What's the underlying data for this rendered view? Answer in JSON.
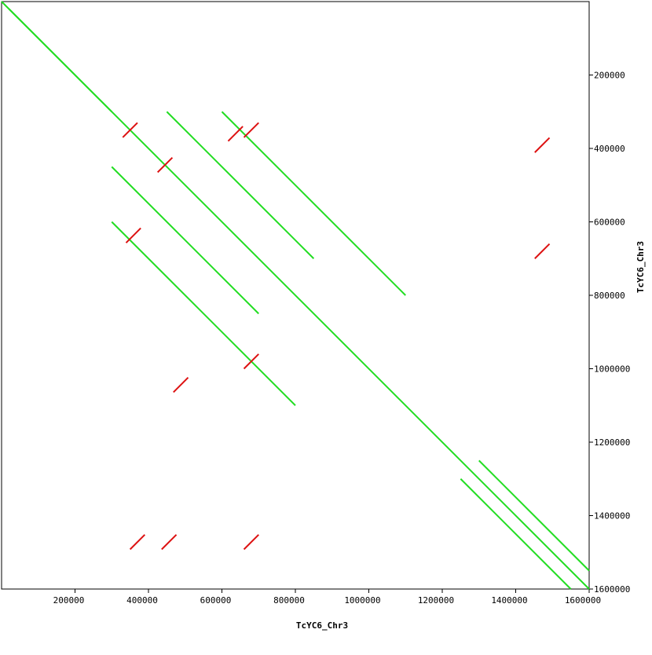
{
  "chart_data": {
    "type": "dotplot",
    "x_label": "TcYC6_Chr3",
    "y_label": "TcYC6_Chr3",
    "xlim": [
      0,
      1600000
    ],
    "ylim": [
      0,
      1600000
    ],
    "xticks": [
      200000,
      400000,
      600000,
      800000,
      1000000,
      1200000,
      1400000,
      1600000
    ],
    "yticks": [
      200000,
      400000,
      600000,
      800000,
      1000000,
      1200000,
      1400000,
      1600000
    ],
    "forward": {
      "color": "#22dd22",
      "segments": [
        [
          0,
          0,
          1600000,
          1600000
        ],
        [
          300000,
          450000,
          700000,
          850000
        ],
        [
          450000,
          300000,
          850000,
          700000
        ],
        [
          600000,
          300000,
          1100000,
          800000
        ],
        [
          300000,
          600000,
          800000,
          1100000
        ],
        [
          1250000,
          1300000,
          1550000,
          1600000
        ],
        [
          1300000,
          1250000,
          1600000,
          1550000
        ],
        [
          20000,
          20000,
          300000,
          300000
        ]
      ]
    },
    "reverse": {
      "color": "#dd1111",
      "segments": [
        [
          330000,
          370000,
          370000,
          330000
        ],
        [
          425000,
          465000,
          465000,
          425000
        ],
        [
          617000,
          380000,
          657000,
          340000
        ],
        [
          339000,
          657000,
          379000,
          617000
        ],
        [
          660000,
          370000,
          700000,
          330000
        ],
        [
          468000,
          1064000,
          508000,
          1024000
        ],
        [
          660000,
          1000000,
          700000,
          960000
        ],
        [
          350000,
          1492000,
          390000,
          1452000
        ],
        [
          436000,
          1492000,
          476000,
          1452000
        ],
        [
          660000,
          1492000,
          700000,
          1452000
        ],
        [
          1452000,
          411000,
          1492000,
          371000
        ],
        [
          1452000,
          700000,
          1492000,
          660000
        ]
      ]
    }
  }
}
